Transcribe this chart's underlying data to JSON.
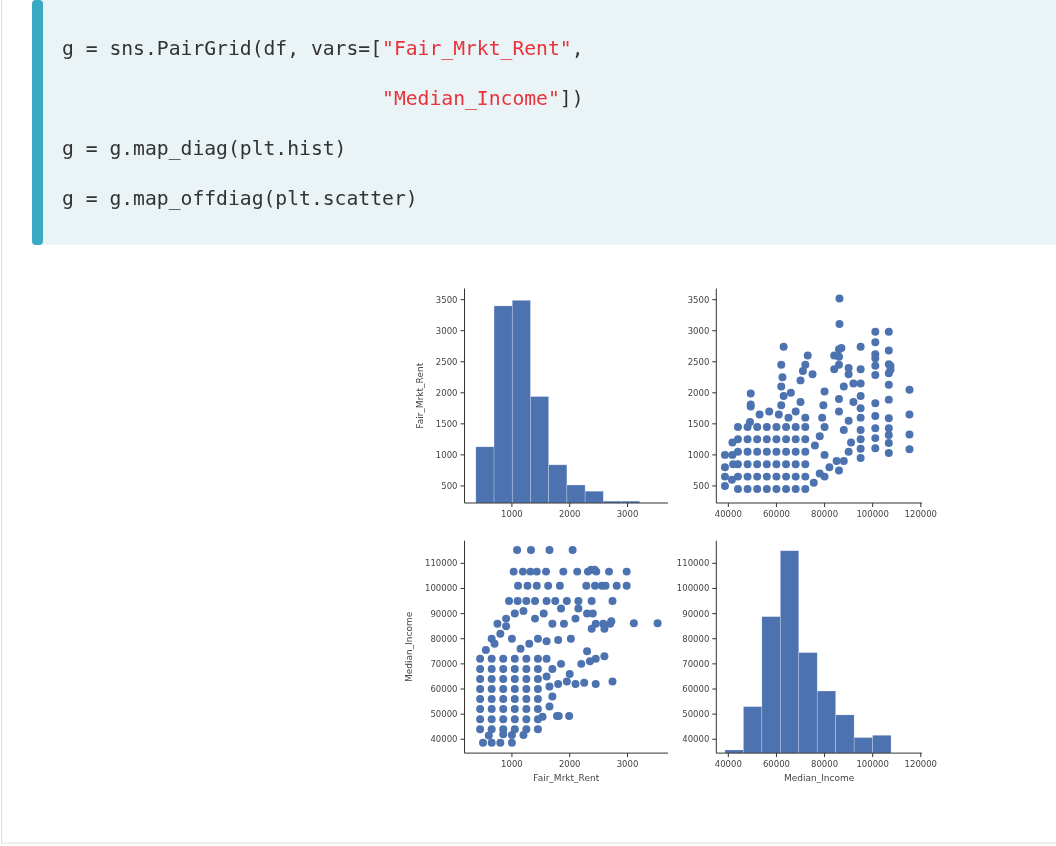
{
  "chart_data": [
    {
      "type": "histogram",
      "annotations": [
        "g = sns.PairGrid(df, vars=[\"Fair_Mrkt_Rent\",",
        "                           \"Median_Income\"])",
        "g = g.map_diag(plt.hist)",
        "g = g.map_offdiag(plt.scatter)"
      ],
      "ylabel": "Fair_Mrkt_Rent",
      "color": "#4c72b0",
      "bins": [
        376,
        691,
        1006,
        1321,
        1636,
        1951,
        2266,
        2581,
        2896,
        3211
      ],
      "values": [
        1130,
        3400,
        3490,
        1940,
        840,
        515,
        415,
        255,
        255
      ],
      "xlim": [
        180,
        3700
      ],
      "xticks": [
        1000,
        2000,
        3000
      ],
      "ylim": [
        225,
        3680
      ],
      "yticks": [
        500,
        1000,
        1500,
        2000,
        2500,
        3000,
        3500
      ]
    },
    {
      "type": "scatter",
      "color": "#4c72b0",
      "marker": "circle",
      "x": [
        44000,
        48000,
        52000,
        56000,
        60000,
        64000,
        68000,
        72000,
        44000,
        48000,
        52000,
        56000,
        60000,
        64000,
        68000,
        72000,
        44000,
        48000,
        52000,
        56000,
        60000,
        64000,
        68000,
        72000,
        44000,
        48000,
        52000,
        56000,
        60000,
        64000,
        68000,
        72000,
        44000,
        48000,
        52000,
        56000,
        60000,
        64000,
        68000,
        72000,
        44000,
        48000,
        52000,
        56000,
        60000,
        64000,
        68000,
        72000,
        38600,
        38600,
        38600,
        38600,
        41700,
        41700,
        41500,
        42000,
        49000,
        49300,
        49300,
        49300,
        53000,
        57000,
        61000,
        62000,
        63000,
        62000,
        62500,
        62000,
        63000,
        66000,
        70000,
        71000,
        72000,
        73000,
        75000,
        68000,
        72000,
        70000,
        65000,
        75500,
        78000,
        82000,
        80000,
        85000,
        86000,
        80000,
        76000,
        78000,
        80000,
        79000,
        79500,
        80000,
        84000,
        88000,
        90000,
        91000,
        88000,
        90000,
        86000,
        86000,
        88000,
        90000,
        86000,
        84000,
        86000,
        92000,
        92000,
        95000,
        95000,
        95000,
        95000,
        95000,
        95000,
        95000,
        95000,
        95000,
        95000,
        87000,
        86000,
        90000,
        86200,
        86200,
        101100,
        101100,
        101100,
        101100,
        101100,
        101100,
        101100,
        101100,
        101100,
        101100,
        101100,
        106700,
        106700,
        106700,
        106700,
        106700,
        106700,
        106700,
        106700,
        106700,
        106700,
        106700,
        107400,
        107400,
        115300,
        115300,
        115300,
        115300
      ],
      "values": [
        450,
        450,
        450,
        450,
        450,
        450,
        450,
        450,
        650,
        650,
        650,
        650,
        650,
        650,
        650,
        650,
        850,
        850,
        850,
        850,
        850,
        850,
        850,
        850,
        1050,
        1050,
        1050,
        1050,
        1050,
        1050,
        1050,
        1050,
        1250,
        1250,
        1250,
        1250,
        1250,
        1250,
        1250,
        1250,
        1450,
        1450,
        1450,
        1450,
        1450,
        1450,
        1450,
        1450,
        500,
        650,
        800,
        1000,
        1000,
        1200,
        600,
        850,
        1530,
        1780,
        1810,
        1990,
        1650,
        1700,
        1650,
        1800,
        1950,
        2100,
        2250,
        2450,
        2740,
        2000,
        2200,
        2350,
        2450,
        2600,
        2300,
        1700,
        1600,
        1850,
        1600,
        550,
        700,
        800,
        650,
        900,
        750,
        1000,
        1150,
        1300,
        1450,
        1600,
        1800,
        2020,
        2380,
        900,
        1050,
        1200,
        1400,
        1550,
        1700,
        1900,
        2100,
        2300,
        2450,
        2600,
        2700,
        2150,
        1850,
        950,
        1100,
        1250,
        1400,
        1600,
        1750,
        1950,
        2150,
        2380,
        2740,
        2720,
        2580,
        2400,
        3110,
        3520,
        2985,
        2813,
        2620,
        2555,
        2437,
        2287,
        1830,
        1627,
        1430,
        1270,
        1106,
        2985,
        2680,
        2460,
        2315,
        2130,
        1890,
        1590,
        1430,
        1320,
        1190,
        1030,
        2370,
        2430,
        1090,
        1330,
        1650,
        2050
      ],
      "xlim": [
        35000,
        120500
      ],
      "xticks": [
        40000,
        60000,
        80000,
        100000,
        120000
      ],
      "ylim": [
        225,
        3680
      ],
      "yticks": [
        500,
        1000,
        1500,
        2000,
        2500,
        3000,
        3500
      ]
    },
    {
      "type": "scatter",
      "color": "#4c72b0",
      "marker": "circle",
      "xlabel": "Fair_Mrkt_Rent",
      "ylabel": "Median_Income",
      "x": [
        450,
        450,
        450,
        450,
        450,
        450,
        450,
        450,
        650,
        650,
        650,
        650,
        650,
        650,
        650,
        650,
        850,
        850,
        850,
        850,
        850,
        850,
        850,
        850,
        1050,
        1050,
        1050,
        1050,
        1050,
        1050,
        1050,
        1050,
        1250,
        1250,
        1250,
        1250,
        1250,
        1250,
        1250,
        1250,
        1450,
        1450,
        1450,
        1450,
        1450,
        1450,
        1450,
        1450,
        500,
        650,
        800,
        1000,
        1000,
        1200,
        600,
        850,
        1530,
        1780,
        1810,
        1990,
        1650,
        1700,
        1650,
        1800,
        1950,
        2100,
        2250,
        2450,
        2740,
        2000,
        2200,
        2350,
        2450,
        2600,
        2300,
        1700,
        1600,
        1850,
        1600,
        550,
        700,
        800,
        650,
        900,
        750,
        1000,
        1150,
        1300,
        1450,
        1600,
        1800,
        2020,
        2380,
        900,
        1050,
        1200,
        1400,
        1550,
        1700,
        1900,
        2100,
        2300,
        2450,
        2600,
        2700,
        2150,
        1850,
        950,
        1100,
        1250,
        1400,
        1600,
        1750,
        1950,
        2150,
        2380,
        2740,
        2720,
        2580,
        2400,
        3110,
        3520,
        2985,
        2813,
        2620,
        2555,
        2437,
        2287,
        1830,
        1627,
        1430,
        1270,
        1106,
        2985,
        2680,
        2460,
        2315,
        2130,
        1890,
        1590,
        1430,
        1320,
        1190,
        1030,
        2370,
        2430,
        1090,
        1330,
        1650,
        2050
      ],
      "values": [
        44000,
        48000,
        52000,
        56000,
        60000,
        64000,
        68000,
        72000,
        44000,
        48000,
        52000,
        56000,
        60000,
        64000,
        68000,
        72000,
        44000,
        48000,
        52000,
        56000,
        60000,
        64000,
        68000,
        72000,
        44000,
        48000,
        52000,
        56000,
        60000,
        64000,
        68000,
        72000,
        44000,
        48000,
        52000,
        56000,
        60000,
        64000,
        68000,
        72000,
        44000,
        48000,
        52000,
        56000,
        60000,
        64000,
        68000,
        72000,
        38600,
        38600,
        38600,
        38600,
        41700,
        41700,
        41500,
        42000,
        49000,
        49300,
        49300,
        49300,
        53000,
        57000,
        61000,
        62000,
        63000,
        62000,
        62500,
        62000,
        63000,
        66000,
        70000,
        71000,
        72000,
        73000,
        75000,
        68000,
        72000,
        70000,
        65000,
        75500,
        78000,
        82000,
        80000,
        85000,
        86000,
        80000,
        76000,
        78000,
        80000,
        79000,
        79500,
        80000,
        84000,
        88000,
        90000,
        91000,
        88000,
        90000,
        86000,
        86000,
        88000,
        90000,
        86000,
        84000,
        86000,
        92000,
        92000,
        95000,
        95000,
        95000,
        95000,
        95000,
        95000,
        95000,
        95000,
        95000,
        95000,
        87000,
        86000,
        90000,
        86200,
        86200,
        101100,
        101100,
        101100,
        101100,
        101100,
        101100,
        101100,
        101100,
        101100,
        101100,
        101100,
        106700,
        106700,
        106700,
        106700,
        106700,
        106700,
        106700,
        106700,
        106700,
        106700,
        106700,
        107400,
        107400,
        115300,
        115300,
        115300,
        115300
      ],
      "xlim": [
        180,
        3700
      ],
      "xticks": [
        1000,
        2000,
        3000
      ],
      "ylim": [
        34500,
        119000
      ],
      "yticks": [
        40000,
        50000,
        60000,
        70000,
        80000,
        90000,
        100000,
        110000
      ]
    },
    {
      "type": "histogram",
      "xlabel": "Median_Income",
      "color": "#4c72b0",
      "bins": [
        38600,
        46270,
        53940,
        61610,
        69280,
        76950,
        84620,
        92290,
        99960,
        107630
      ],
      "values": [
        35750,
        53000,
        88800,
        115000,
        74500,
        59200,
        49700,
        40700,
        41600
      ],
      "xlim": [
        35000,
        120500
      ],
      "xticks": [
        40000,
        60000,
        80000,
        100000,
        120000
      ],
      "ylim": [
        34500,
        119000
      ],
      "yticks": [
        40000,
        50000,
        60000,
        70000,
        80000,
        90000,
        100000,
        110000
      ]
    }
  ]
}
